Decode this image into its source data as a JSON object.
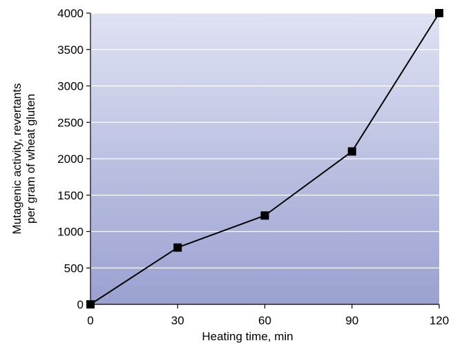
{
  "chart_data": {
    "type": "line",
    "title": "",
    "xlabel": "Heating time, min",
    "ylabel_lines": [
      "Mutagenic activity, revertants",
      "per gram of wheat gluten"
    ],
    "x": [
      0,
      30,
      60,
      90,
      120
    ],
    "series": [
      {
        "values": [
          0,
          780,
          1220,
          2100,
          4000
        ]
      }
    ],
    "xlim": [
      0,
      120
    ],
    "ylim": [
      0,
      4000
    ],
    "xticks": [
      0,
      30,
      60,
      90,
      120
    ],
    "yticks": [
      0,
      500,
      1000,
      1500,
      2000,
      2500,
      3000,
      3500,
      4000
    ],
    "xtick_labels": [
      "0",
      "30",
      "60",
      "90",
      "120"
    ],
    "ytick_labels": [
      "0",
      "500",
      "1000",
      "1500",
      "2000",
      "2500",
      "3000",
      "3500",
      "4000"
    ],
    "grid": "horizontal",
    "legend": "none",
    "marker": "square",
    "colors": {
      "background_top": "#dfe2f3",
      "background_bottom": "#9aa1d0",
      "gridline": "#ffffff",
      "line": "#000000",
      "marker": "#000000"
    }
  }
}
